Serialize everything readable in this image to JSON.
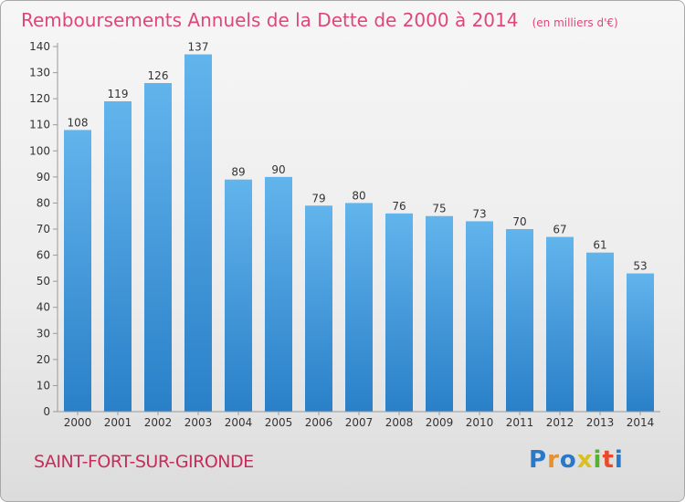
{
  "title": "Remboursements Annuels de la Dette de 2000 à 2014",
  "unit_note": "(en milliers d'€)",
  "commune": "SAINT-FORT-SUR-GIRONDE",
  "logo": {
    "text": "Proxiti",
    "letters": [
      {
        "ch": "P",
        "color": "#2a78c8"
      },
      {
        "ch": "r",
        "color": "#e8902a"
      },
      {
        "ch": "o",
        "color": "#2a78c8"
      },
      {
        "ch": "x",
        "color": "#d8c020"
      },
      {
        "ch": "i",
        "color": "#58b030"
      },
      {
        "ch": "t",
        "color": "#e84a2a"
      },
      {
        "ch": "i",
        "color": "#2a78c8"
      }
    ]
  },
  "colors": {
    "bar_top": "#62b4ec",
    "bar_bottom": "#2a80c8",
    "title": "#e0457b",
    "commune": "#c72c5c"
  },
  "chart_data": {
    "type": "bar",
    "categories": [
      "2000",
      "2001",
      "2002",
      "2003",
      "2004",
      "2005",
      "2006",
      "2007",
      "2008",
      "2009",
      "2010",
      "2011",
      "2012",
      "2013",
      "2014"
    ],
    "values": [
      108,
      119,
      126,
      137,
      89,
      90,
      79,
      80,
      76,
      75,
      73,
      70,
      67,
      61,
      53
    ],
    "ylim": [
      0,
      140
    ],
    "yticks": [
      0,
      10,
      20,
      30,
      40,
      50,
      60,
      70,
      80,
      90,
      100,
      110,
      120,
      130,
      140
    ],
    "grid": false,
    "data_labels": true
  }
}
